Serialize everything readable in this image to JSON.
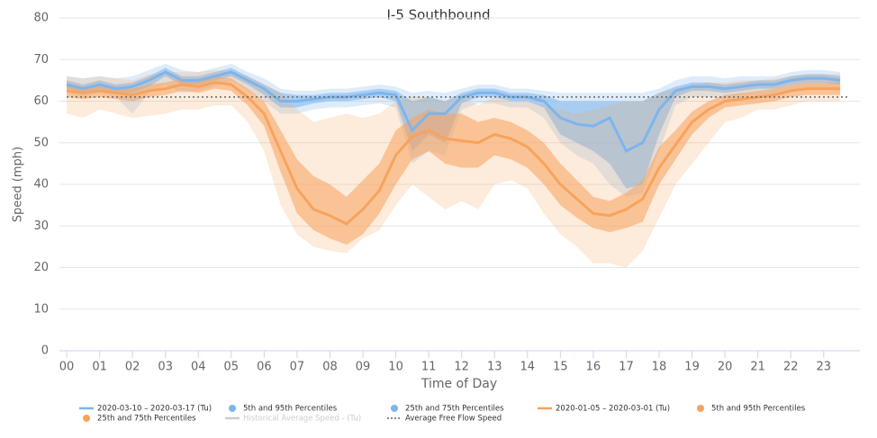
{
  "chart_data": {
    "type": "line",
    "title": "I-5 Southbound",
    "xlabel": "Time of Day",
    "ylabel": "Speed (mph)",
    "x": [
      0,
      0.5,
      1,
      1.5,
      2,
      2.5,
      3,
      3.5,
      4,
      4.5,
      5,
      5.5,
      6,
      6.5,
      7,
      7.5,
      8,
      8.5,
      9,
      9.5,
      10,
      10.5,
      11,
      11.5,
      12,
      12.5,
      13,
      13.5,
      14,
      14.5,
      15,
      15.5,
      16,
      16.5,
      17,
      17.5,
      18,
      18.5,
      19,
      19.5,
      20,
      20.5,
      21,
      21.5,
      22,
      22.5,
      23,
      23.5
    ],
    "xlim": [
      -0.22,
      24.1
    ],
    "xticks": [
      {
        "value": 0,
        "label": "00"
      },
      {
        "value": 1,
        "label": "01"
      },
      {
        "value": 2,
        "label": "02"
      },
      {
        "value": 3,
        "label": "03"
      },
      {
        "value": 4,
        "label": "04"
      },
      {
        "value": 5,
        "label": "05"
      },
      {
        "value": 6,
        "label": "06"
      },
      {
        "value": 7,
        "label": "07"
      },
      {
        "value": 8,
        "label": "08"
      },
      {
        "value": 9,
        "label": "09"
      },
      10,
      11,
      12,
      13,
      14,
      15,
      16,
      17,
      18,
      19,
      20,
      21,
      22,
      23
    ],
    "ylim": [
      0,
      80
    ],
    "yticks": [
      0,
      10,
      20,
      30,
      40,
      50,
      60,
      70,
      80
    ],
    "grid": true,
    "series": [
      {
        "name": "2020-03-10 – 2020-03-17 (Tu)",
        "kind": "line",
        "color": "#7cb5ec",
        "values": [
          64,
          63,
          64,
          63,
          63.5,
          65,
          67,
          65,
          65,
          66,
          67,
          65,
          63,
          60,
          60,
          60.5,
          61,
          61,
          61.5,
          62,
          61.5,
          53,
          57,
          57,
          61,
          62,
          62,
          61,
          61,
          60,
          56,
          54.5,
          54,
          56,
          48,
          50,
          58,
          62.5,
          63.5,
          63.5,
          63,
          63.5,
          64,
          64,
          65,
          65.5,
          65.5,
          65
        ]
      },
      {
        "name": "5th and 95th Percentiles",
        "kind": "band",
        "color": "#7cb5ec",
        "opacity": 0.25,
        "low": [
          62,
          61,
          62,
          61,
          57,
          62,
          64,
          62,
          62.5,
          63.5,
          65,
          62.5,
          60,
          57,
          57,
          58,
          58.5,
          58.5,
          59,
          59.5,
          58.5,
          45,
          48,
          47,
          58,
          59.5,
          59.5,
          58.5,
          58.5,
          56,
          50,
          47,
          45,
          40,
          37,
          38,
          48,
          59,
          61,
          61,
          60.5,
          61,
          61.5,
          61.5,
          62.5,
          63,
          63,
          62.5
        ],
        "high": [
          66,
          65.5,
          66,
          65.5,
          66,
          67.5,
          69,
          67.5,
          67,
          68,
          69,
          67,
          65.5,
          63,
          62.5,
          62.5,
          63,
          63,
          63.5,
          64,
          63.5,
          62,
          62.5,
          62,
          63,
          64,
          64,
          63,
          63,
          62.5,
          62,
          62,
          62,
          62,
          62,
          62,
          63,
          65,
          66,
          66,
          65.5,
          66,
          66,
          66,
          67,
          67.5,
          67.5,
          67
        ]
      },
      {
        "name": "25th and 75th Percentiles",
        "kind": "band",
        "color": "#7cb5ec",
        "opacity": 0.55,
        "low": [
          63,
          62,
          63,
          62,
          62,
          63.5,
          66,
          64,
          64,
          65,
          66,
          64,
          61.5,
          58.5,
          58.5,
          59.5,
          60,
          60,
          60.5,
          61,
          60,
          48,
          52,
          50,
          59.5,
          61,
          61,
          60,
          60,
          58.5,
          52,
          50,
          48,
          45,
          39,
          40,
          52,
          61,
          62.5,
          62.5,
          62,
          62.5,
          63,
          63,
          64,
          64.5,
          64.5,
          64
        ],
        "high": [
          65,
          64,
          65,
          64,
          64.5,
          66,
          68,
          66,
          66,
          67,
          68,
          66,
          64,
          62,
          61.5,
          61.5,
          62,
          62,
          62.5,
          63,
          62.5,
          60,
          61,
          60,
          62,
          63,
          63,
          62,
          62,
          61.5,
          60,
          60,
          60,
          60,
          60,
          60,
          62,
          63.5,
          64.5,
          64.5,
          64,
          64.5,
          65,
          65,
          66,
          66.5,
          66.5,
          66
        ]
      },
      {
        "name": "2020-01-05 – 2020-03-01 (Tu)",
        "kind": "line",
        "color": "#f7a35c",
        "values": [
          62.5,
          62,
          62.5,
          62,
          61.5,
          62.5,
          63,
          64,
          63.5,
          64.5,
          64,
          61,
          57,
          48,
          39,
          34,
          32.5,
          30.5,
          34,
          38.5,
          47,
          51.5,
          53,
          51,
          50.5,
          50,
          52,
          51,
          49,
          45,
          40,
          36.5,
          33,
          32.5,
          34,
          36.5,
          44,
          49.5,
          55,
          58,
          60,
          60.5,
          61,
          61.5,
          62.5,
          63,
          63,
          63
        ]
      },
      {
        "name": "5th and 95th Percentiles",
        "kind": "band",
        "color": "#f7a35c",
        "opacity": 0.22,
        "low": [
          57,
          56,
          58,
          57,
          56,
          56.5,
          57,
          58,
          58,
          59,
          59,
          55,
          48,
          35,
          28,
          25,
          24,
          23.5,
          27,
          29,
          35,
          40,
          37,
          34,
          36,
          34,
          40,
          41,
          39,
          33,
          28,
          25,
          21,
          21,
          20,
          24,
          32,
          40,
          45,
          50,
          55,
          56,
          58,
          58,
          59,
          60,
          60,
          60
        ],
        "high": [
          66,
          65.5,
          66,
          65.5,
          65,
          66.5,
          67,
          67,
          67,
          67.5,
          67,
          66,
          64,
          62,
          58,
          55,
          56,
          57,
          56,
          57,
          60,
          61,
          61,
          60,
          61,
          59,
          61,
          60,
          60,
          59,
          58,
          57,
          58,
          59,
          60,
          60,
          62,
          63,
          64,
          64.5,
          64.5,
          65,
          65,
          65.5,
          66,
          66.5,
          66.5,
          66.5
        ]
      },
      {
        "name": "25th and 75th Percentiles",
        "kind": "band",
        "color": "#f7a35c",
        "opacity": 0.55,
        "low": [
          61,
          60.5,
          61,
          60.5,
          60,
          61,
          61.5,
          62.5,
          62,
          63,
          62.5,
          59,
          54,
          43,
          33,
          29,
          27,
          25.5,
          28,
          33,
          40,
          46,
          48,
          45,
          44,
          44,
          47,
          46,
          44,
          40,
          35,
          32,
          29.5,
          28.5,
          29.5,
          31,
          40,
          46,
          52,
          56,
          58.5,
          59,
          59.5,
          60,
          61,
          61.5,
          61.5,
          61.5
        ],
        "high": [
          64,
          63.5,
          64,
          63.5,
          63,
          64,
          64.5,
          65.5,
          65,
          66,
          65.5,
          63,
          60,
          53,
          46,
          42,
          40,
          37,
          41,
          45,
          53,
          56,
          58,
          57,
          57,
          55,
          56,
          55,
          53,
          50,
          45,
          41,
          37,
          36,
          38,
          41,
          49,
          53,
          57.5,
          60,
          61.5,
          62,
          62.5,
          63,
          64,
          64.5,
          64.5,
          64.5
        ]
      },
      {
        "name": "Historical Average Speed - (Tu)",
        "kind": "line",
        "color": "#cccccc",
        "visible": false
      },
      {
        "name": "Average Free Flow Speed",
        "kind": "reference",
        "color": "#666666",
        "dash": true,
        "value": 61
      }
    ]
  }
}
